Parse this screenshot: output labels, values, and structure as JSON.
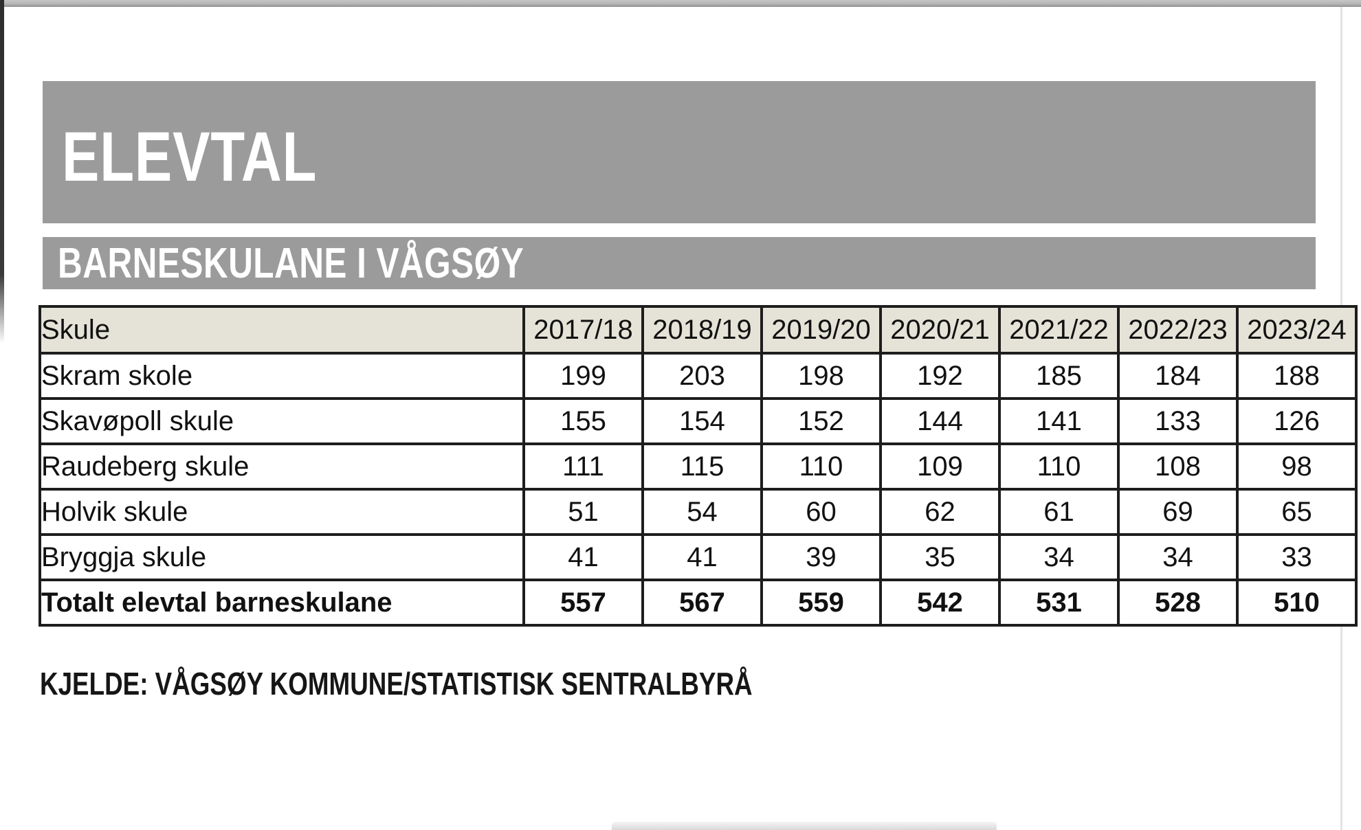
{
  "page": {
    "title": "ELEVTAL",
    "subtitle": "BARNESKULANE I VÅGSØY",
    "source": "KJELDE: VÅGSØY KOMMUNE/STATISTISK SENTRALBYRÅ"
  },
  "colors": {
    "banner_gray": "#9b9b9b",
    "table_header_beige": "#e5e3d7",
    "border_dark": "#1d1d1d",
    "text_dark": "#111111",
    "banner_text_white": "#ffffff"
  },
  "chart_data": {
    "type": "table",
    "title": "ELEVTAL",
    "subtitle": "BARNESKULANE I VÅGSØY",
    "columns": [
      "Skule",
      "2017/18",
      "2018/19",
      "2019/20",
      "2020/21",
      "2021/22",
      "2022/23",
      "2023/24"
    ],
    "rows": [
      {
        "label": "Skram skole",
        "values": [
          199,
          203,
          198,
          192,
          185,
          184,
          188
        ],
        "bold": false
      },
      {
        "label": "Skavøpoll skule",
        "values": [
          155,
          154,
          152,
          144,
          141,
          133,
          126
        ],
        "bold": false
      },
      {
        "label": "Raudeberg skule",
        "values": [
          111,
          115,
          110,
          109,
          110,
          108,
          98
        ],
        "bold": false
      },
      {
        "label": "Holvik skule",
        "values": [
          51,
          54,
          60,
          62,
          61,
          69,
          65
        ],
        "bold": false
      },
      {
        "label": "Bryggja skule",
        "values": [
          41,
          41,
          39,
          35,
          34,
          34,
          33
        ],
        "bold": false
      },
      {
        "label": "Totalt elevtal barneskulane",
        "values": [
          557,
          567,
          559,
          542,
          531,
          528,
          510
        ],
        "bold": true
      }
    ],
    "source": "KJELDE: VÅGSØY KOMMUNE/STATISTISK SENTRALBYRÅ"
  }
}
